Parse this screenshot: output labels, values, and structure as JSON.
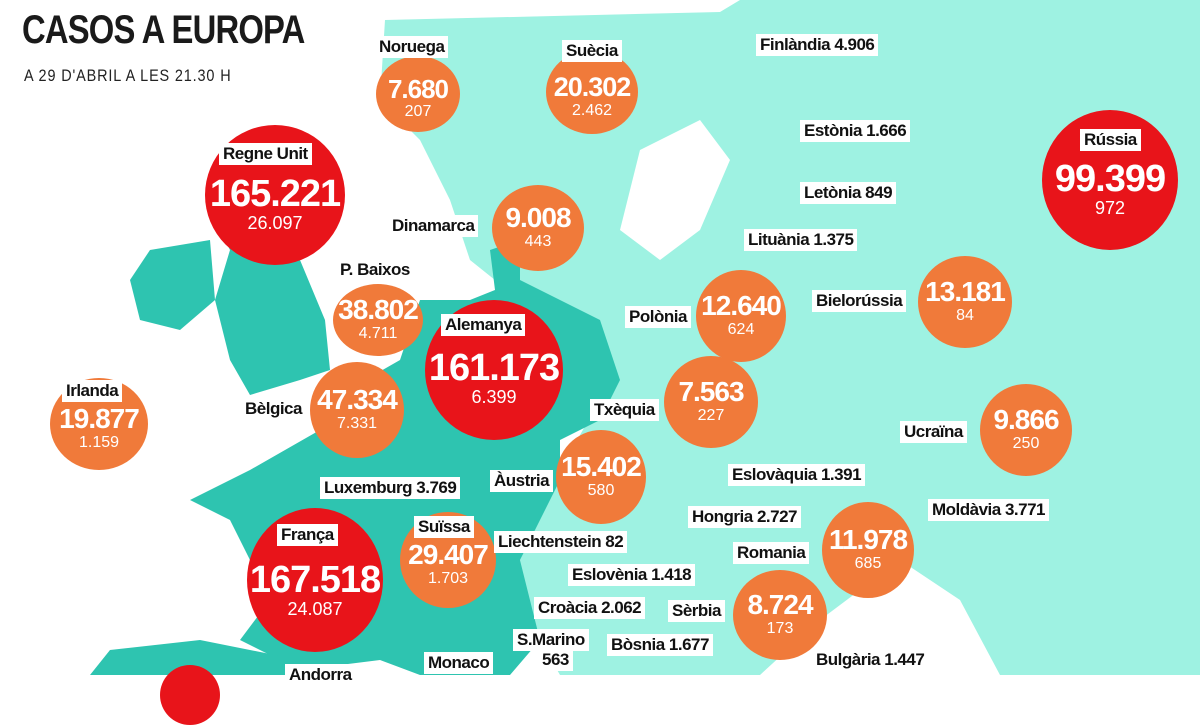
{
  "header": {
    "title": "CASOS A EUROPA",
    "subtitle": "A 29 D'ABRIL A LES 21.30 H"
  },
  "colors": {
    "land_east": "#9ef2e2",
    "land_west": "#2ec4b0",
    "high": "#e8141a",
    "medium": "#f07a3a"
  },
  "bubbles": [
    {
      "country": "Noruega",
      "cases": "7.680",
      "deaths": "207"
    },
    {
      "country": "Suècia",
      "cases": "20.302",
      "deaths": "2.462"
    },
    {
      "country": "Rússia",
      "cases": "99.399",
      "deaths": "972"
    },
    {
      "country": "Regne Unit",
      "cases": "165.221",
      "deaths": "26.097"
    },
    {
      "country": "Dinamarca",
      "cases": "9.008",
      "deaths": "443"
    },
    {
      "country": "P. Baixos",
      "cases": "38.802",
      "deaths": "4.711"
    },
    {
      "country": "Alemanya",
      "cases": "161.173",
      "deaths": "6.399"
    },
    {
      "country": "Polònia",
      "cases": "12.640",
      "deaths": "624"
    },
    {
      "country": "Bielorússia",
      "cases": "13.181",
      "deaths": "84"
    },
    {
      "country": "Irlanda",
      "cases": "19.877",
      "deaths": "1.159"
    },
    {
      "country": "Bèlgica",
      "cases": "47.334",
      "deaths": "7.331"
    },
    {
      "country": "Txèquia",
      "cases": "7.563",
      "deaths": "227"
    },
    {
      "country": "Ucraïna",
      "cases": "9.866",
      "deaths": "250"
    },
    {
      "country": "Àustria",
      "cases": "15.402",
      "deaths": "580"
    },
    {
      "country": "França",
      "cases": "167.518",
      "deaths": "24.087"
    },
    {
      "country": "Suïssa",
      "cases": "29.407",
      "deaths": "1.703"
    },
    {
      "country": "Romania",
      "cases": "11.978",
      "deaths": "685"
    },
    {
      "country": "Sèrbia",
      "cases": "8.724",
      "deaths": "173"
    }
  ],
  "labels": [
    "Finlàndia 4.906",
    "Estònia 1.666",
    "Letònia 849",
    "Lituània 1.375",
    "Luxemburg 3.769",
    "Eslovàquia 1.391",
    "Hongria 2.727",
    "Moldàvia 3.771",
    "Liechtenstein 82",
    "Eslovènia 1.418",
    "Croàcia 2.062",
    "S.Marino",
    "563",
    "Bòsnia 1.677",
    "Bulgària 1.447",
    "Monaco",
    "Andorra"
  ]
}
